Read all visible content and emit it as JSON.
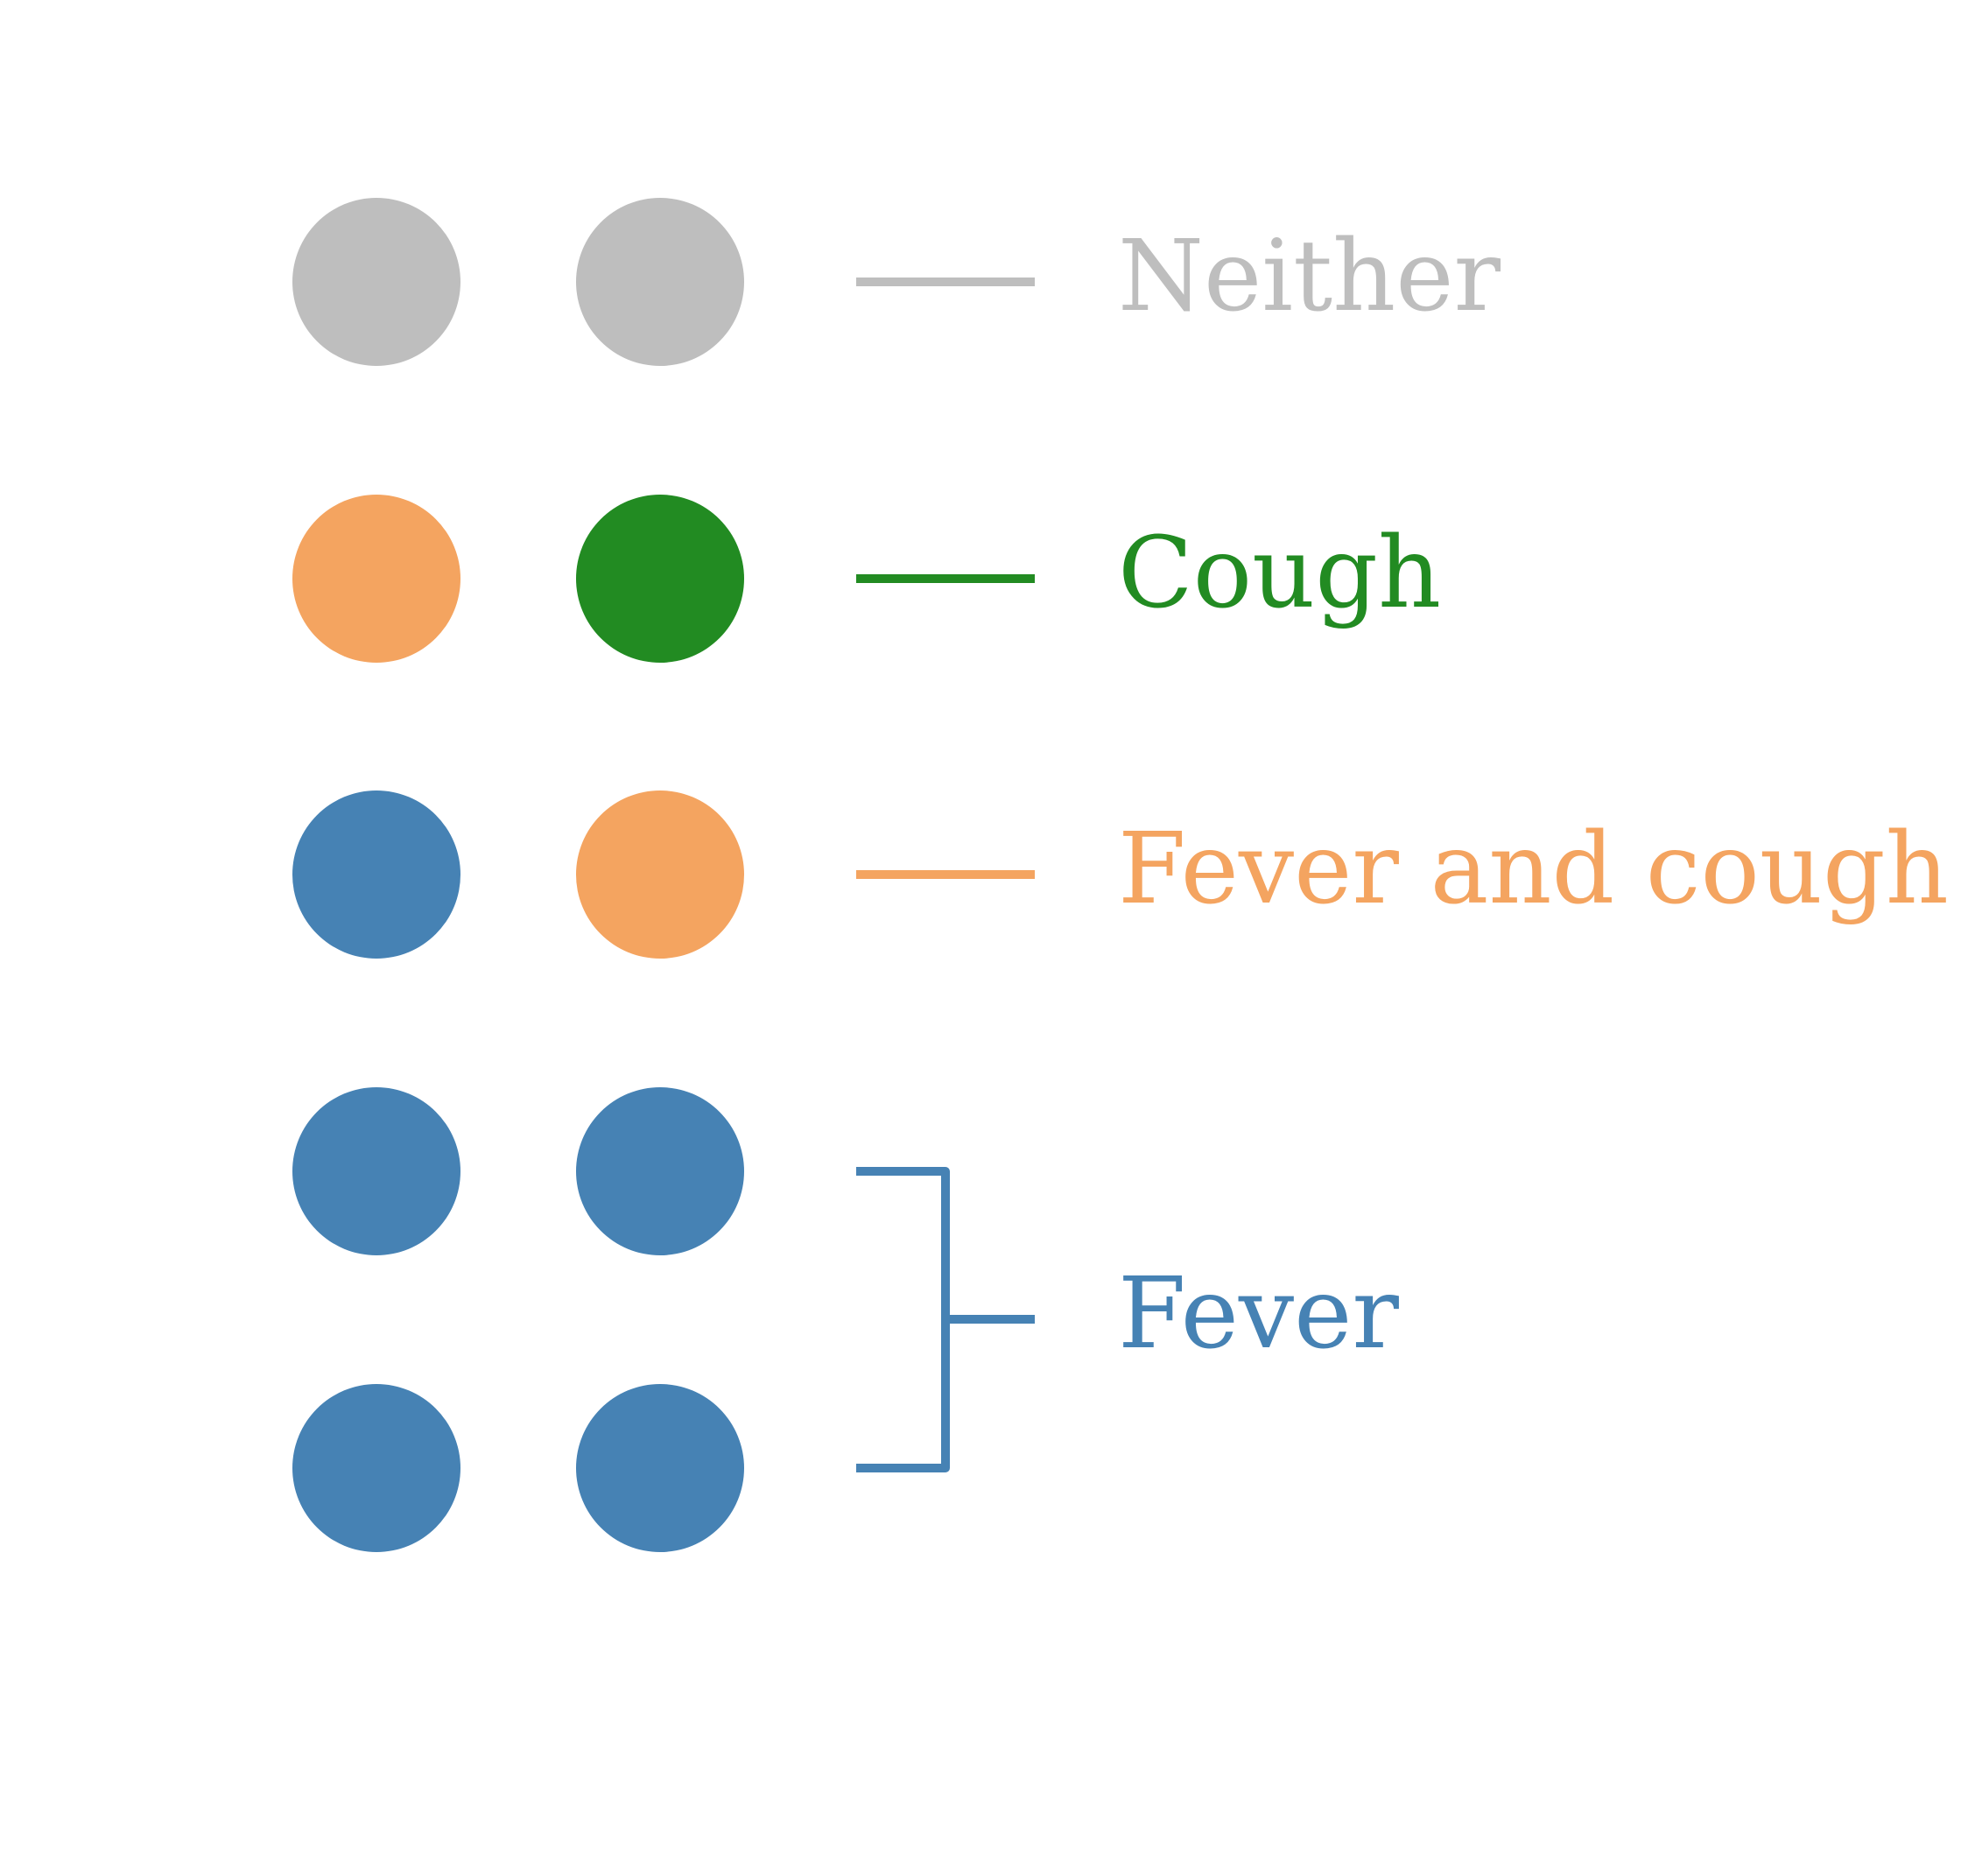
{
  "colors": {
    "neither": "#bebebe",
    "cough": "#228b22",
    "fever_and_cough": "#f4a460",
    "fever": "#4682b4"
  },
  "rows": [
    {
      "left_dot": "neither",
      "right_dot": "neither"
    },
    {
      "left_dot": "fever_and_cough",
      "right_dot": "cough"
    },
    {
      "left_dot": "fever",
      "right_dot": "fever_and_cough"
    },
    {
      "left_dot": "fever",
      "right_dot": "fever"
    },
    {
      "left_dot": "fever",
      "right_dot": "fever"
    }
  ],
  "legend": [
    {
      "key": "neither",
      "label": "Neither"
    },
    {
      "key": "cough",
      "label": "Cough"
    },
    {
      "key": "fever_and_cough",
      "label": "Fever and cough"
    },
    {
      "key": "fever",
      "label": "Fever"
    }
  ]
}
